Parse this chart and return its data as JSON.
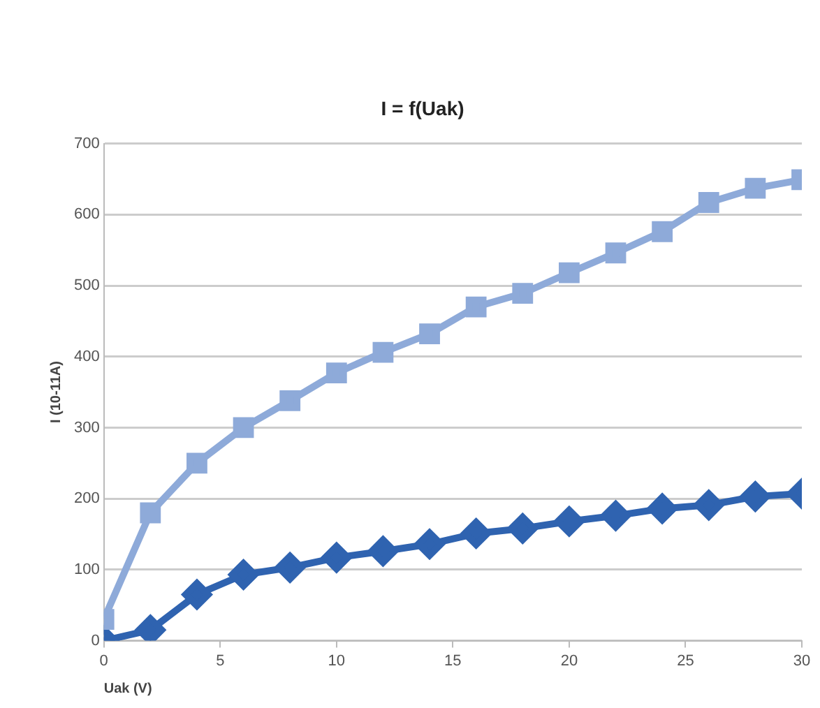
{
  "chart_data": {
    "type": "line",
    "title": "I = f(Uak)",
    "xlabel": "Uak (V)",
    "ylabel": "I (10-11A)",
    "x": [
      0,
      2,
      4,
      6,
      8,
      10,
      12,
      14,
      16,
      18,
      20,
      22,
      24,
      26,
      28,
      30
    ],
    "series": [
      {
        "color": "#8eaad9",
        "marker": "square",
        "values": [
          30,
          180,
          250,
          300,
          338,
          377,
          406,
          432,
          470,
          489,
          518,
          546,
          576,
          617,
          637,
          649
        ]
      },
      {
        "color": "#2f63b0",
        "marker": "diamond",
        "values": [
          0,
          15,
          65,
          93,
          103,
          117,
          126,
          136,
          151,
          158,
          168,
          176,
          186,
          191,
          203,
          207
        ]
      }
    ],
    "xlim": [
      0,
      30
    ],
    "xticks": [
      0,
      5,
      10,
      15,
      20,
      25,
      30
    ],
    "ylim": [
      0,
      700
    ],
    "yticks": [
      0,
      100,
      200,
      300,
      400,
      500,
      600,
      700
    ],
    "grid": "y",
    "legend": false,
    "line_style": "solid"
  }
}
